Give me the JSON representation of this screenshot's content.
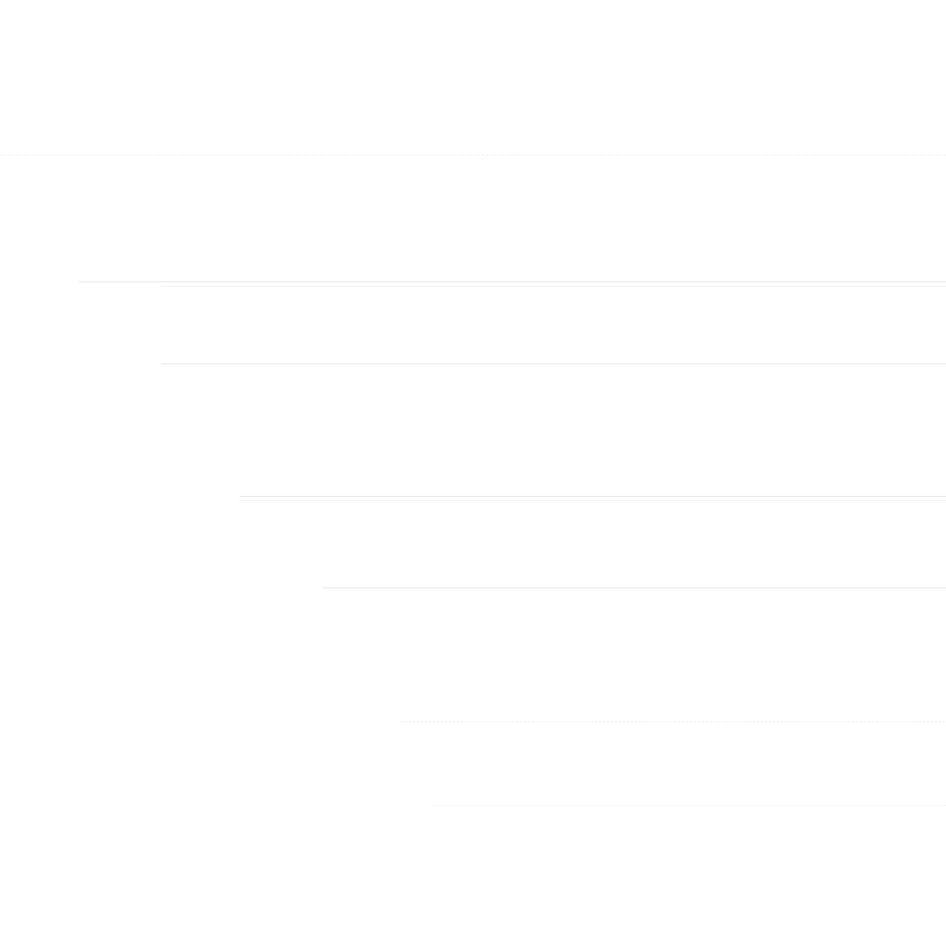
{
  "page": {
    "background_color": "#ffffff",
    "line_color": "#e4e4e4"
  }
}
